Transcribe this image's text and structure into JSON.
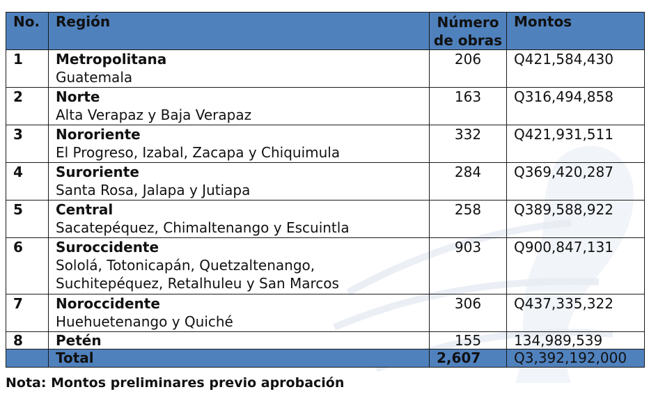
{
  "header": {
    "no": "No.",
    "region": "Región",
    "num_obras_line1": "Número",
    "num_obras_line2": "de obras",
    "montos": "Montos"
  },
  "rows": [
    {
      "no": "1",
      "region": "Metropolitana",
      "departments": "Guatemala",
      "obras": "206",
      "monto": "Q421,584,430"
    },
    {
      "no": "2",
      "region": "Norte",
      "departments": "Alta Verapaz y Baja Verapaz",
      "obras": "163",
      "monto": "Q316,494,858"
    },
    {
      "no": "3",
      "region": "Nororiente",
      "departments": "El Progreso, Izabal, Zacapa y Chiquimula",
      "obras": "332",
      "monto": "Q421,931,511"
    },
    {
      "no": "4",
      "region": "Suroriente",
      "departments": "Santa Rosa, Jalapa y Jutiapa",
      "obras": "284",
      "monto": "Q369,420,287"
    },
    {
      "no": "5",
      "region": "Central",
      "departments": "Sacatepéquez, Chimaltenango y Escuintla",
      "obras": "258",
      "monto": "Q389,588,922"
    },
    {
      "no": "6",
      "region": "Suroccidente",
      "departments_line1": "Sololá, Totonicapán, Quetzaltenango,",
      "departments_line2": "Suchitepéquez, Retalhuleu y San Marcos",
      "obras": "903",
      "monto": "Q900,847,131"
    },
    {
      "no": "7",
      "region": "Noroccidente",
      "departments": "Huehuetenango y Quiché",
      "obras": "306",
      "monto": "Q437,335,322"
    },
    {
      "no": "8",
      "region": "Petén",
      "obras": "155",
      "monto": "134,989,539"
    }
  ],
  "total": {
    "label": "Total",
    "obras": "2,607",
    "monto": "Q3,392,192,000"
  },
  "note": "Nota: Montos preliminares previo aprobación",
  "colors": {
    "header_bg": "#4f81bd",
    "border": "#1a1a1a"
  }
}
